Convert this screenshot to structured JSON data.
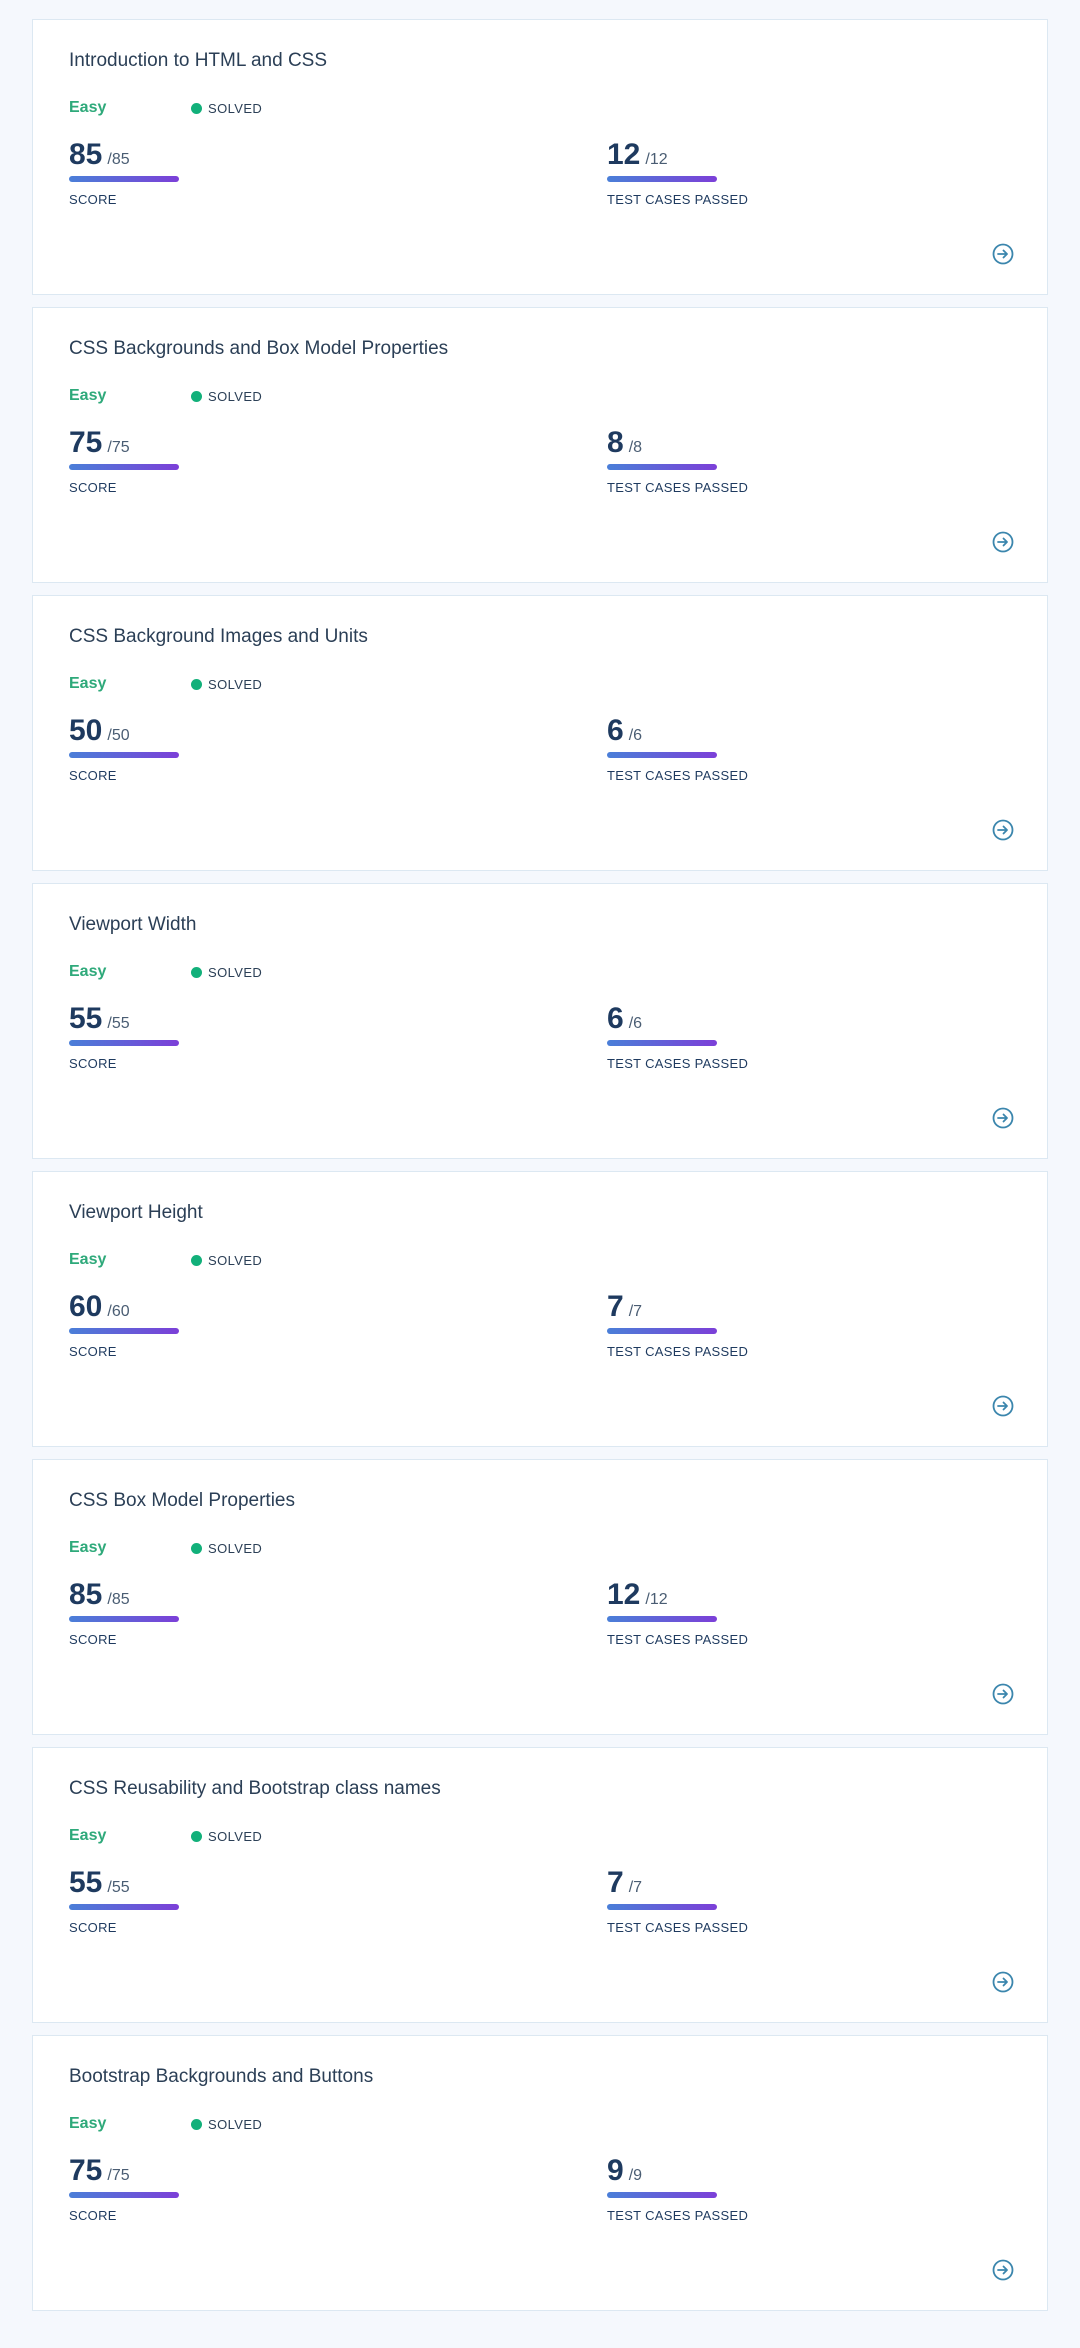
{
  "labels": {
    "score": "SCORE",
    "tests": "TEST CASES PASSED",
    "status": "SOLVED"
  },
  "colors": {
    "background": "#f5f8fd",
    "card": "#ffffff",
    "border": "#dce8f2",
    "easy": "#2ea97a",
    "solved_dot": "#12b07a",
    "bar_start": "#4a7fd8",
    "bar_end": "#7c3fd8",
    "icon": "#3b86ad"
  },
  "icons": {
    "open": "arrow-right-circle-icon",
    "status": "dot"
  },
  "cards": [
    {
      "title": "Introduction to HTML and CSS",
      "difficulty": "Easy",
      "status": "SOLVED",
      "score": "85",
      "score_max": "/85",
      "tests": "12",
      "tests_max": "/12"
    },
    {
      "title": "CSS Backgrounds and Box Model Properties",
      "difficulty": "Easy",
      "status": "SOLVED",
      "score": "75",
      "score_max": "/75",
      "tests": "8",
      "tests_max": "/8"
    },
    {
      "title": "CSS Background Images and Units",
      "difficulty": "Easy",
      "status": "SOLVED",
      "score": "50",
      "score_max": "/50",
      "tests": "6",
      "tests_max": "/6"
    },
    {
      "title": "Viewport Width",
      "difficulty": "Easy",
      "status": "SOLVED",
      "score": "55",
      "score_max": "/55",
      "tests": "6",
      "tests_max": "/6"
    },
    {
      "title": "Viewport Height",
      "difficulty": "Easy",
      "status": "SOLVED",
      "score": "60",
      "score_max": "/60",
      "tests": "7",
      "tests_max": "/7"
    },
    {
      "title": "CSS Box Model Properties",
      "difficulty": "Easy",
      "status": "SOLVED",
      "score": "85",
      "score_max": "/85",
      "tests": "12",
      "tests_max": "/12"
    },
    {
      "title": "CSS Reusability and Bootstrap class names",
      "difficulty": "Easy",
      "status": "SOLVED",
      "score": "55",
      "score_max": "/55",
      "tests": "7",
      "tests_max": "/7"
    },
    {
      "title": "Bootstrap Backgrounds and Buttons",
      "difficulty": "Easy",
      "status": "SOLVED",
      "score": "75",
      "score_max": "/75",
      "tests": "9",
      "tests_max": "/9"
    }
  ]
}
